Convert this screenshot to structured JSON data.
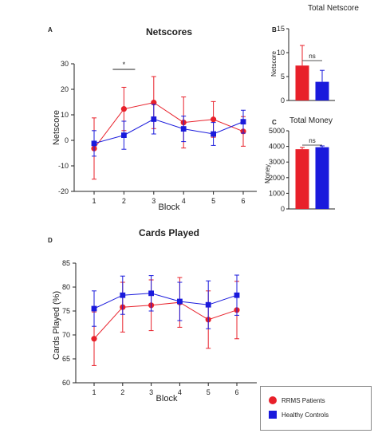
{
  "colors": {
    "rrms": "#e8202a",
    "hc": "#1a1adc",
    "axis": "#222222"
  },
  "legend": {
    "items": [
      {
        "label": "RRMS Patients",
        "color": "#e8202a",
        "marker": "circle"
      },
      {
        "label": "Healthy Controls",
        "color": "#1a1adc",
        "marker": "square"
      }
    ]
  },
  "chart_data": [
    {
      "panel": "A",
      "type": "line",
      "title": "Netscores",
      "xlabel": "Block",
      "ylabel": "Netscore",
      "x": [
        1,
        2,
        3,
        4,
        5,
        6
      ],
      "xticks": [
        "1",
        "2",
        "3",
        "4",
        "5",
        "6"
      ],
      "yticks": [
        "-20",
        "-10",
        "0",
        "10",
        "20",
        "30"
      ],
      "ylim": [
        -20,
        30
      ],
      "annotation": "*",
      "series": [
        {
          "name": "RRMS Patients",
          "values": [
            -3.2,
            12.3,
            14.8,
            7.0,
            8.2,
            3.5
          ],
          "err": [
            12,
            8.5,
            10.2,
            10.0,
            7.0,
            5.8
          ]
        },
        {
          "name": "Healthy Controls",
          "values": [
            -1.2,
            2.0,
            8.3,
            4.5,
            2.5,
            7.3
          ],
          "err": [
            5.0,
            5.5,
            5.8,
            5.0,
            4.5,
            4.5
          ]
        }
      ]
    },
    {
      "panel": "B",
      "type": "bar",
      "title": "Total Netscore",
      "ylabel": "Netscore",
      "categories": [
        "RRMS Patients",
        "Healthy Controls"
      ],
      "values": [
        7.3,
        3.9
      ],
      "err": [
        4.2,
        2.4
      ],
      "yticks": [
        "0",
        "5",
        "10",
        "15"
      ],
      "ylim": [
        0,
        15
      ],
      "annotation": "ns"
    },
    {
      "panel": "C",
      "type": "bar",
      "title": "Total Money",
      "ylabel": "Money",
      "categories": [
        "RRMS Patients",
        "Healthy Controls"
      ],
      "values": [
        3820,
        3950
      ],
      "err": [
        120,
        80
      ],
      "yticks": [
        "0",
        "1000",
        "2000",
        "3000",
        "4000",
        "5000"
      ],
      "ylim": [
        0,
        5000
      ],
      "annotation": "ns"
    },
    {
      "panel": "D",
      "type": "line",
      "title": "Cards Played",
      "xlabel": "Block",
      "ylabel": "Cards Played (%)",
      "x": [
        1,
        2,
        3,
        4,
        5,
        6
      ],
      "xticks": [
        "1",
        "2",
        "3",
        "4",
        "5",
        "6"
      ],
      "yticks": [
        "60",
        "65",
        "70",
        "75",
        "80",
        "85"
      ],
      "ylim": [
        60,
        85
      ],
      "series": [
        {
          "name": "RRMS Patients",
          "values": [
            69.2,
            75.8,
            76.2,
            76.8,
            73.2,
            75.2
          ],
          "err": [
            5.6,
            5.2,
            5.3,
            5.2,
            6.0,
            6.0
          ]
        },
        {
          "name": "Healthy Controls",
          "values": [
            75.5,
            78.3,
            78.7,
            77.0,
            76.3,
            78.3
          ],
          "err": [
            3.7,
            4.0,
            3.7,
            4.0,
            5.0,
            4.2
          ]
        }
      ]
    }
  ]
}
